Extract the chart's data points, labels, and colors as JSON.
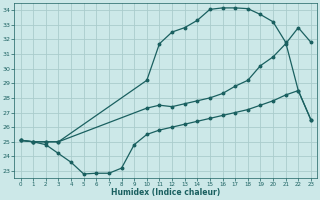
{
  "xlabel": "Humidex (Indice chaleur)",
  "bg_color": "#cce8e8",
  "grid_color": "#aacccc",
  "line_color": "#1a6060",
  "xlim": [
    -0.5,
    23.5
  ],
  "ylim": [
    22.5,
    34.5
  ],
  "xticks": [
    0,
    1,
    2,
    3,
    4,
    5,
    6,
    7,
    8,
    9,
    10,
    11,
    12,
    13,
    14,
    15,
    16,
    17,
    18,
    19,
    20,
    21,
    22,
    23
  ],
  "yticks": [
    23,
    24,
    25,
    26,
    27,
    28,
    29,
    30,
    31,
    32,
    33,
    34
  ],
  "line1_x": [
    0,
    1,
    2,
    3,
    4,
    5,
    6,
    7,
    8,
    9,
    10,
    11,
    12,
    13,
    14,
    15,
    16,
    17,
    18,
    19,
    20,
    21,
    22,
    23
  ],
  "line1_y": [
    25.1,
    25.0,
    24.8,
    24.2,
    23.6,
    22.8,
    22.85,
    22.85,
    23.2,
    24.8,
    25.5,
    25.8,
    26.0,
    26.2,
    26.4,
    26.6,
    26.8,
    27.0,
    27.2,
    27.5,
    27.8,
    28.2,
    28.5,
    26.5
  ],
  "line2_x": [
    0,
    1,
    2,
    3,
    10,
    11,
    12,
    13,
    14,
    15,
    16,
    17,
    18,
    19,
    20,
    21,
    22,
    23
  ],
  "line2_y": [
    25.1,
    25.0,
    25.0,
    25.0,
    29.2,
    31.7,
    32.5,
    32.8,
    33.3,
    34.05,
    34.15,
    34.15,
    34.1,
    33.7,
    33.2,
    31.8,
    28.5,
    26.5
  ],
  "line3_x": [
    0,
    1,
    2,
    3,
    10,
    11,
    12,
    13,
    14,
    15,
    16,
    17,
    18,
    19,
    20,
    21,
    22,
    23
  ],
  "line3_y": [
    25.1,
    25.0,
    25.0,
    25.0,
    27.3,
    27.5,
    27.4,
    27.6,
    27.8,
    28.0,
    28.3,
    28.8,
    29.2,
    30.2,
    30.8,
    31.7,
    32.8,
    31.8
  ]
}
